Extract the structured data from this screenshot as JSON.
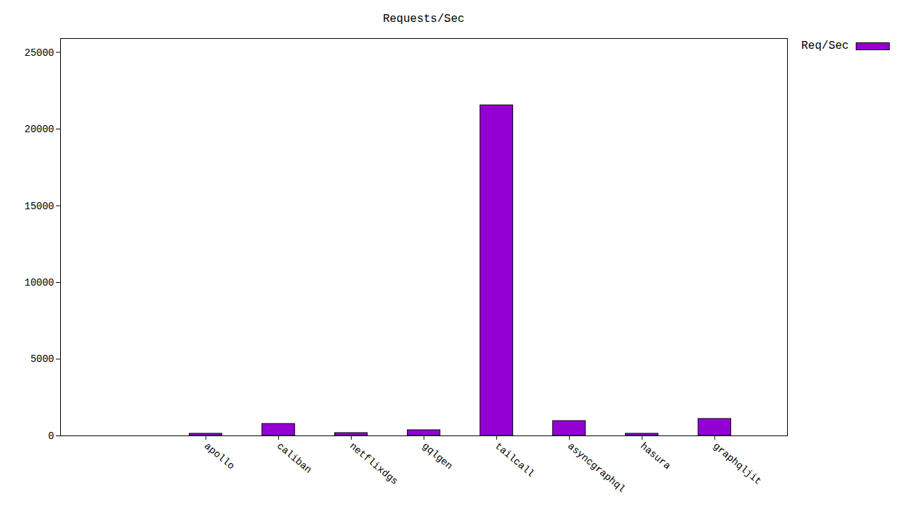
{
  "chart_data": {
    "type": "bar",
    "title": "Requests/Sec",
    "categories": [
      "apollo",
      "caliban",
      "netflixdgs",
      "gqlgen",
      "tailcall",
      "asyncgraphql",
      "hasura",
      "graphqljit"
    ],
    "series": [
      {
        "name": "Req/Sec",
        "color": "#9400d3",
        "values": [
          140,
          780,
          185,
          370,
          21550,
          967,
          140,
          1105
        ]
      }
    ],
    "ylim": [
      0,
      25900
    ],
    "yticks": [
      0,
      5000,
      10000,
      15000,
      20000,
      25000
    ],
    "grid": false,
    "legend": "top-right"
  }
}
